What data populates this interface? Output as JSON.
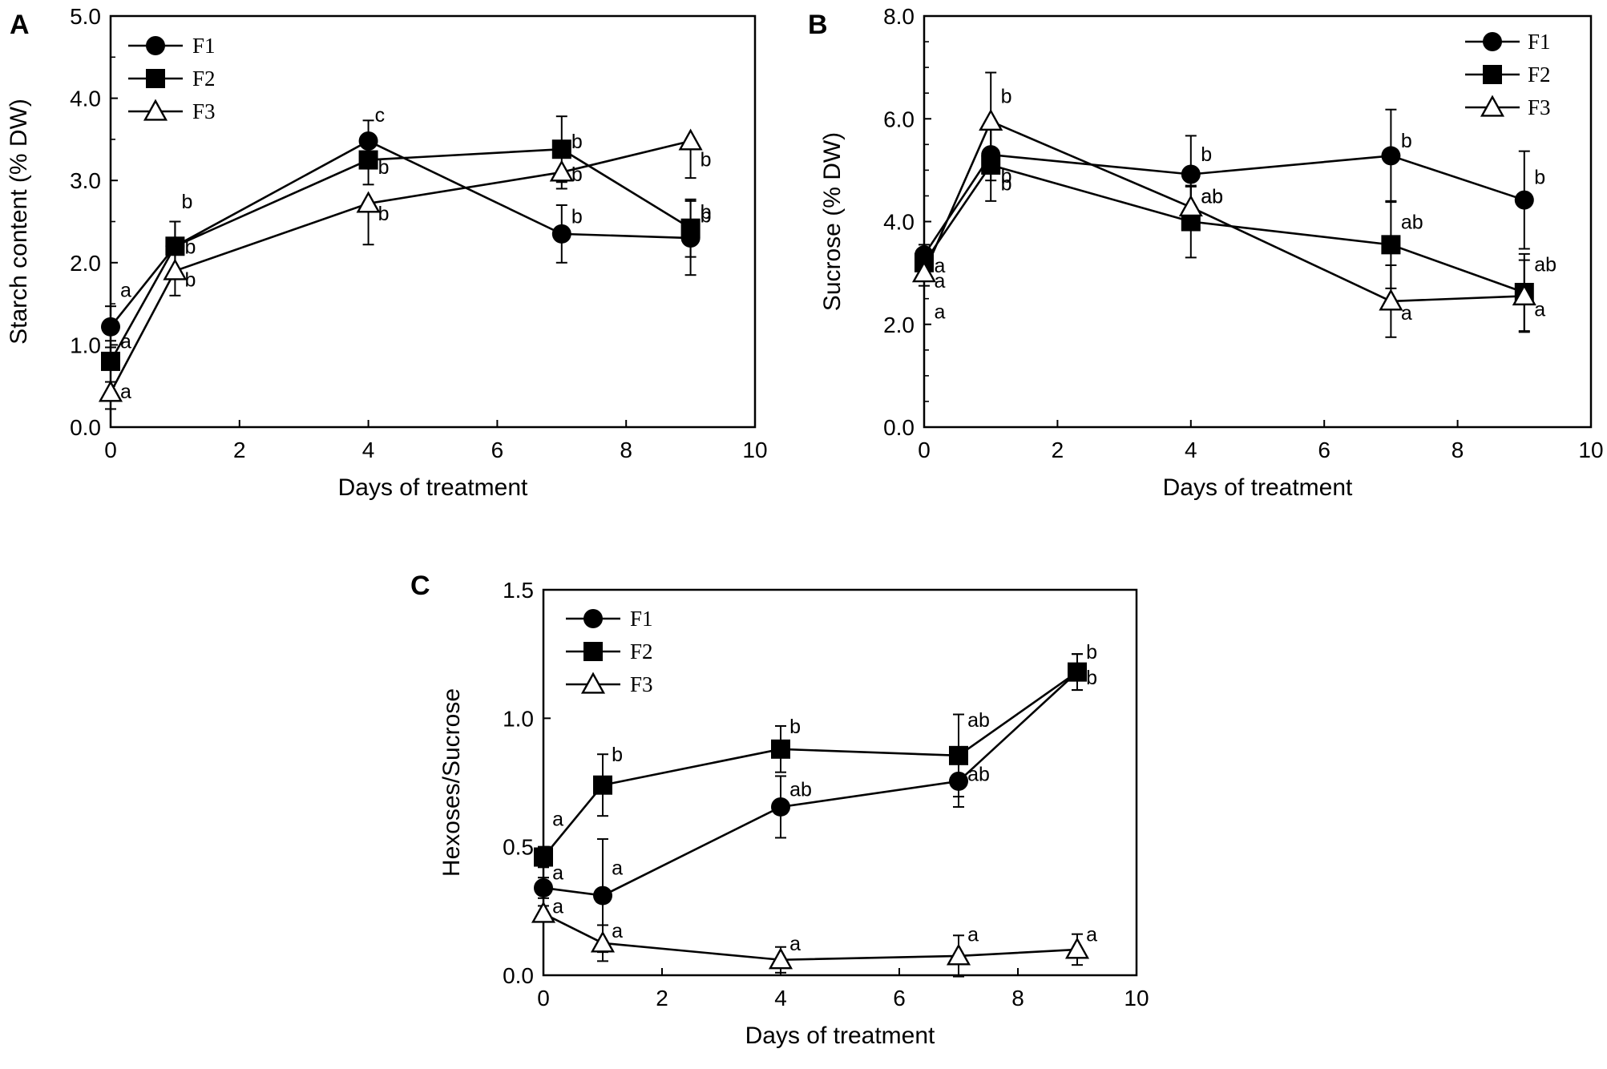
{
  "chart_data": [
    {
      "type": "line",
      "panel": "A",
      "xlabel": "Days of treatment",
      "ylabel": "Starch content (% DW)",
      "xlim": [
        0,
        10
      ],
      "ylim": [
        0,
        5
      ],
      "xticks": [
        0,
        2,
        4,
        6,
        8,
        10
      ],
      "yticks": [
        0,
        1,
        2,
        3,
        4,
        5
      ],
      "xtick_labels": [
        "0",
        "2",
        "4",
        "6",
        "8",
        "10"
      ],
      "ytick_labels": [
        "0.0",
        "1.0",
        "2.0",
        "3.0",
        "4.0",
        "5.0"
      ],
      "legend_position": "top-left",
      "x": [
        0,
        1,
        4,
        7,
        9
      ],
      "series": [
        {
          "name": "F1",
          "marker": "circle",
          "values": [
            1.22,
            2.2,
            3.48,
            2.35,
            2.3
          ],
          "errors": [
            0.25,
            0.3,
            0.25,
            0.35,
            0.45
          ],
          "err_dir": "both",
          "letters": [
            "a",
            "b",
            "c",
            "b",
            "b"
          ],
          "letter_offsets": [
            [
              0.15,
              0.45
            ],
            [
              0.1,
              0.55
            ],
            [
              0.1,
              0.32
            ],
            [
              0.15,
              0.22
            ],
            [
              0.15,
              0.28
            ]
          ]
        },
        {
          "name": "F2",
          "marker": "square",
          "values": [
            0.8,
            2.2,
            3.25,
            3.38,
            2.42
          ],
          "errors": [
            0.25,
            0.3,
            0.3,
            0.4,
            0.35
          ],
          "err_dir": "both",
          "letters": [
            "a",
            "b",
            "b",
            "b",
            "b"
          ],
          "letter_offsets": [
            [
              0.15,
              0.25
            ],
            [
              0.15,
              0.0
            ],
            [
              0.15,
              -0.08
            ],
            [
              0.15,
              0.1
            ],
            [
              0.15,
              0.2
            ]
          ]
        },
        {
          "name": "F3",
          "marker": "triangle",
          "values": [
            0.42,
            1.9,
            2.72,
            3.1,
            3.48
          ],
          "errors": [
            0.2,
            0.3,
            0.5,
            0.2,
            0.45
          ],
          "err_dir": "down",
          "letters": [
            "a",
            "b",
            "b",
            "b",
            "b"
          ],
          "letter_offsets": [
            [
              0.15,
              0.02
            ],
            [
              0.15,
              -0.1
            ],
            [
              0.15,
              -0.12
            ],
            [
              0.15,
              -0.02
            ],
            [
              0.15,
              -0.22
            ]
          ]
        }
      ]
    },
    {
      "type": "line",
      "panel": "B",
      "xlabel": "Days of treatment",
      "ylabel": "Sucrose (% DW)",
      "xlim": [
        0,
        10
      ],
      "ylim": [
        0,
        8
      ],
      "xticks": [
        0,
        2,
        4,
        6,
        8,
        10
      ],
      "yticks": [
        0,
        2,
        4,
        6,
        8
      ],
      "xtick_labels": [
        "0",
        "2",
        "4",
        "6",
        "8",
        "10"
      ],
      "ytick_labels": [
        "0.0",
        "2.0",
        "4.0",
        "6.0",
        "8.0"
      ],
      "legend_position": "top-right",
      "x": [
        0,
        1,
        4,
        7,
        9
      ],
      "series": [
        {
          "name": "F1",
          "marker": "circle",
          "values": [
            3.35,
            5.3,
            4.92,
            5.28,
            4.42
          ],
          "errors": [
            0.2,
            0.5,
            0.75,
            0.9,
            0.95
          ],
          "err_dir": "both",
          "letters": [
            "a",
            "b",
            "b",
            "b",
            "b"
          ],
          "letter_offsets": [
            [
              0.15,
              -0.5
            ],
            [
              0.15,
              -0.4
            ],
            [
              0.15,
              0.4
            ],
            [
              0.15,
              0.3
            ],
            [
              0.15,
              0.45
            ]
          ]
        },
        {
          "name": "F2",
          "marker": "square",
          "values": [
            3.2,
            5.1,
            4.0,
            3.55,
            2.62
          ],
          "errors": [
            0.25,
            0.7,
            0.7,
            0.85,
            0.75
          ],
          "err_dir": "both",
          "letters": [
            "a",
            "b",
            "ab",
            "ab",
            "ab"
          ],
          "letter_offsets": [
            [
              0.15,
              -0.05
            ],
            [
              0.15,
              -0.35
            ],
            [
              0.15,
              0.5
            ],
            [
              0.15,
              0.45
            ],
            [
              0.15,
              0.55
            ]
          ]
        },
        {
          "name": "F3",
          "marker": "triangle",
          "values": [
            3.0,
            5.95,
            4.28,
            2.45,
            2.55
          ],
          "errors": [
            0.25,
            0.95,
            0.4,
            0.7,
            0.7
          ],
          "err_dir": "both",
          "letters": [
            "a",
            "b",
            "ab",
            "a",
            "a"
          ],
          "letter_offsets": [
            [
              0.15,
              -0.75
            ],
            [
              0.15,
              0.5
            ],
            [
              0.15,
              0.22
            ],
            [
              0.15,
              -0.22
            ],
            [
              0.15,
              -0.25
            ]
          ]
        }
      ]
    },
    {
      "type": "line",
      "panel": "C",
      "xlabel": "Days of treatment",
      "ylabel": "Hexoses/Sucrose",
      "xlim": [
        0,
        10
      ],
      "ylim": [
        0,
        1.5
      ],
      "xticks": [
        0,
        2,
        4,
        6,
        8,
        10
      ],
      "yticks": [
        0,
        0.5,
        1.0,
        1.5
      ],
      "xtick_labels": [
        "0",
        "2",
        "4",
        "6",
        "8",
        "10"
      ],
      "ytick_labels": [
        "0.0",
        "0.5",
        "1.0",
        "1.5"
      ],
      "legend_position": "top-left",
      "x": [
        0,
        1,
        4,
        7,
        9
      ],
      "series": [
        {
          "name": "F1",
          "marker": "circle",
          "values": [
            0.34,
            0.31,
            0.655,
            0.755,
            1.18
          ],
          "errors": [
            0.04,
            0.22,
            0.12,
            0.1,
            0.07
          ],
          "err_dir": "both",
          "letters": [
            "a",
            "a",
            "ab",
            "ab",
            "b"
          ],
          "letter_offsets": [
            [
              0.15,
              0.06
            ],
            [
              0.15,
              0.11
            ],
            [
              0.15,
              0.07
            ],
            [
              0.15,
              0.03
            ],
            [
              0.15,
              -0.02
            ]
          ]
        },
        {
          "name": "F2",
          "marker": "square",
          "values": [
            0.46,
            0.74,
            0.88,
            0.855,
            1.18
          ],
          "errors": [
            0.04,
            0.12,
            0.09,
            0.16,
            0.07
          ],
          "err_dir": "both",
          "letters": [
            "a",
            "b",
            "b",
            "ab",
            "b"
          ],
          "letter_offsets": [
            [
              0.15,
              0.15
            ],
            [
              0.15,
              0.12
            ],
            [
              0.15,
              0.09
            ],
            [
              0.15,
              0.14
            ],
            [
              0.15,
              0.08
            ]
          ]
        },
        {
          "name": "F3",
          "marker": "triangle",
          "values": [
            0.24,
            0.125,
            0.06,
            0.075,
            0.1
          ],
          "errors": [
            0.03,
            0.07,
            0.05,
            0.08,
            0.06
          ],
          "err_dir": "both",
          "letters": [
            "a",
            "a",
            "a",
            "a",
            "a"
          ],
          "letter_offsets": [
            [
              0.15,
              0.03
            ],
            [
              0.15,
              0.05
            ],
            [
              0.15,
              0.065
            ],
            [
              0.15,
              0.085
            ],
            [
              0.15,
              0.06
            ]
          ]
        }
      ]
    }
  ],
  "panels": {
    "A": {
      "letter": "A"
    },
    "B": {
      "letter": "B"
    },
    "C": {
      "letter": "C"
    }
  }
}
